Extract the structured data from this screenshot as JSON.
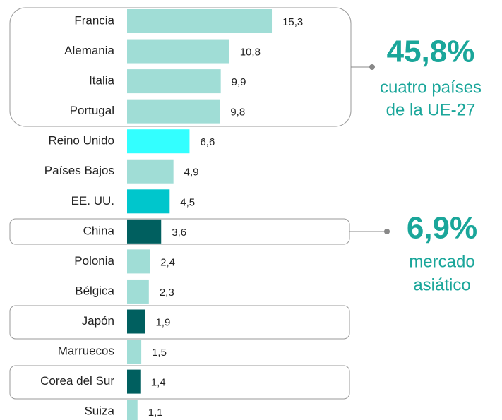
{
  "chart_data": {
    "type": "bar",
    "categories": [
      "Francia",
      "Alemania",
      "Italia",
      "Portugal",
      "Reino Unido",
      "Países Bajos",
      "EE. UU.",
      "China",
      "Polonia",
      "Bélgica",
      "Japón",
      "Marruecos",
      "Corea del Sur",
      "Suiza"
    ],
    "values": [
      15.3,
      10.8,
      9.9,
      9.8,
      6.6,
      4.9,
      4.5,
      3.6,
      2.4,
      2.3,
      1.9,
      1.5,
      1.4,
      1.1
    ],
    "value_labels": [
      "15,3",
      "10,8",
      "9,9",
      "9,8",
      "6,6",
      "4,9",
      "4,5",
      "3,6",
      "2,4",
      "2,3",
      "1,9",
      "1,5",
      "1,4",
      "1,1"
    ],
    "colors": [
      "#a0ddd6",
      "#a0ddd6",
      "#a0ddd6",
      "#a0ddd6",
      "#33ffff",
      "#a0ddd6",
      "#00c6cc",
      "#005f5f",
      "#a0ddd6",
      "#a0ddd6",
      "#005f5f",
      "#a0ddd6",
      "#005f5f",
      "#a0ddd6"
    ],
    "annotations": [
      {
        "headline": "45,8%",
        "lines": [
          "cuatro países",
          "de la UE-27"
        ]
      },
      {
        "headline": "6,9%",
        "lines": [
          "mercado",
          "asiático"
        ]
      }
    ]
  }
}
